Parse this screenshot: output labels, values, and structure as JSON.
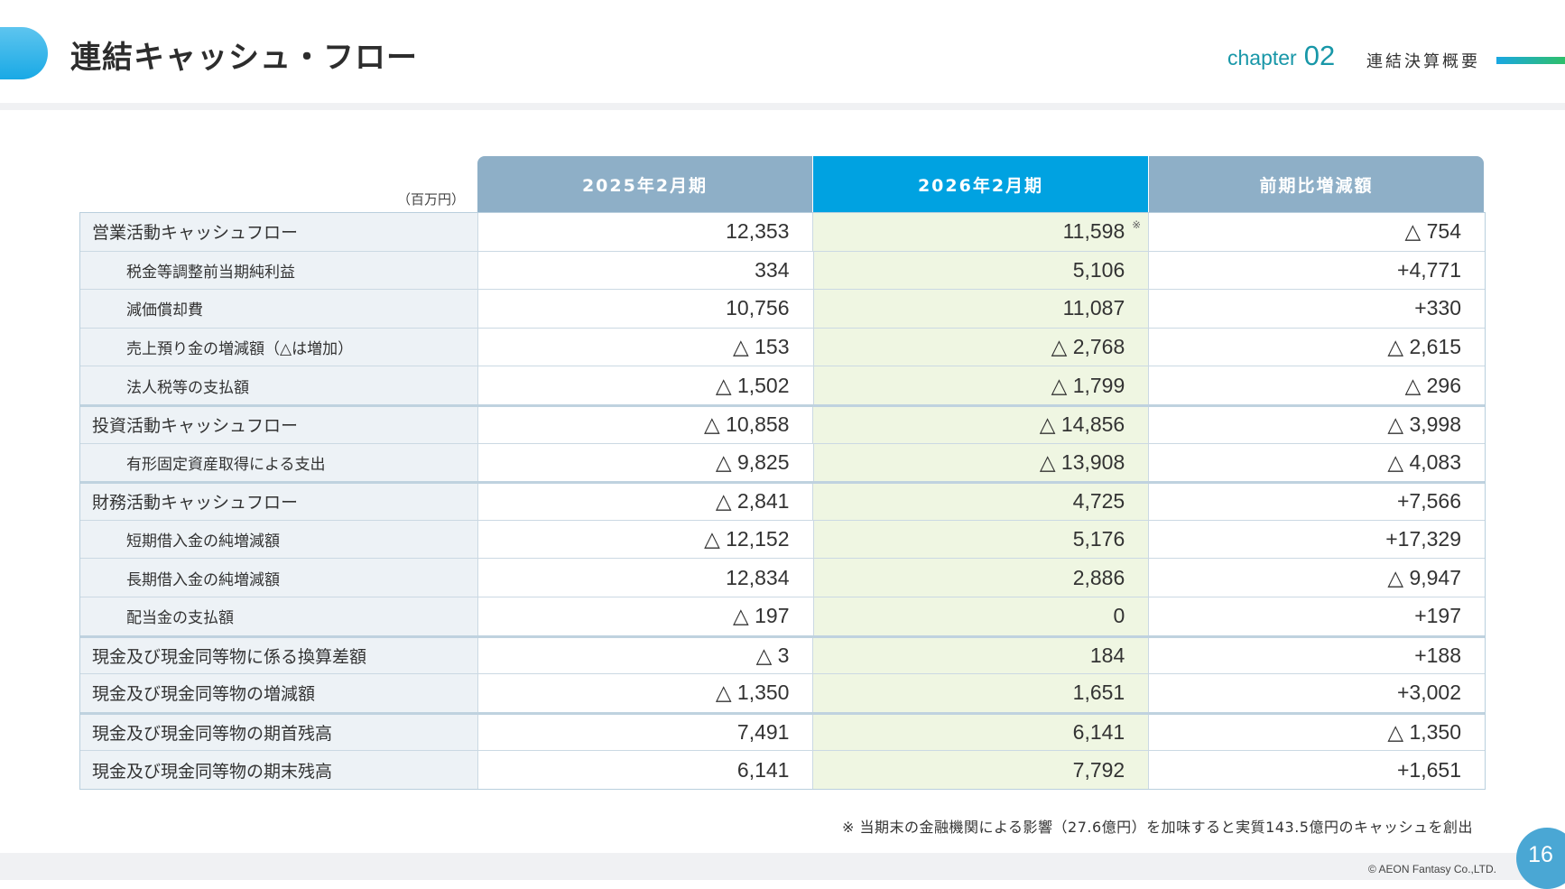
{
  "header": {
    "title": "連結キャッシュ・フロー",
    "chapter_word": "chapter",
    "chapter_number": "02",
    "chapter_label": "連結決算概要"
  },
  "table": {
    "unit": "（百万円）",
    "columns": [
      "2025年2月期",
      "2026年2月期",
      "前期比増減額"
    ],
    "rows": [
      {
        "label": "営業活動キャッシュフロー",
        "y2025": "12,353",
        "y2026": "11,598",
        "diff": "△ 754",
        "note_mark": "※"
      },
      {
        "label": "税金等調整前当期純利益",
        "y2025": "334",
        "y2026": "5,106",
        "diff": "+4,771"
      },
      {
        "label": "減価償却費",
        "y2025": "10,756",
        "y2026": "11,087",
        "diff": "+330"
      },
      {
        "label": "売上預り金の増減額（△は増加）",
        "y2025": "△ 153",
        "y2026": "△ 2,768",
        "diff": "△ 2,615"
      },
      {
        "label": "法人税等の支払額",
        "y2025": "△ 1,502",
        "y2026": "△ 1,799",
        "diff": "△ 296"
      },
      {
        "label": "投資活動キャッシュフロー",
        "y2025": "△ 10,858",
        "y2026": "△ 14,856",
        "diff": "△ 3,998"
      },
      {
        "label": "有形固定資産取得による支出",
        "y2025": "△ 9,825",
        "y2026": "△ 13,908",
        "diff": "△ 4,083"
      },
      {
        "label": "財務活動キャッシュフロー",
        "y2025": "△ 2,841",
        "y2026": "4,725",
        "diff": "+7,566"
      },
      {
        "label": "短期借入金の純増減額",
        "y2025": "△ 12,152",
        "y2026": "5,176",
        "diff": "+17,329"
      },
      {
        "label": "長期借入金の純増減額",
        "y2025": "12,834",
        "y2026": "2,886",
        "diff": "△ 9,947"
      },
      {
        "label": "配当金の支払額",
        "y2025": "△ 197",
        "y2026": "0",
        "diff": "+197"
      },
      {
        "label": "現金及び現金同等物に係る換算差額",
        "y2025": "△ 3",
        "y2026": "184",
        "diff": "+188"
      },
      {
        "label": "現金及び現金同等物の増減額",
        "y2025": "△ 1,350",
        "y2026": "1,651",
        "diff": "+3,002"
      },
      {
        "label": "現金及び現金同等物の期首残高",
        "y2025": "7,491",
        "y2026": "6,141",
        "diff": "△ 1,350"
      },
      {
        "label": "現金及び現金同等物の期末残高",
        "y2025": "6,141",
        "y2026": "7,792",
        "diff": "+1,651"
      }
    ],
    "footnote": "※ 当期末の金融機関による影響（27.6億円）を加味すると実質143.5億円のキャッシュを創出"
  },
  "footer": {
    "copyright": "© AEON Fantasy Co.,LTD.",
    "page_number": "16"
  },
  "colors": {
    "accent": "#00a2e1",
    "header_gray_blue": "#8eafc7",
    "highlight_column": "#eff6e2",
    "label_column": "#edf2f6",
    "chapter_teal": "#1897a8"
  }
}
